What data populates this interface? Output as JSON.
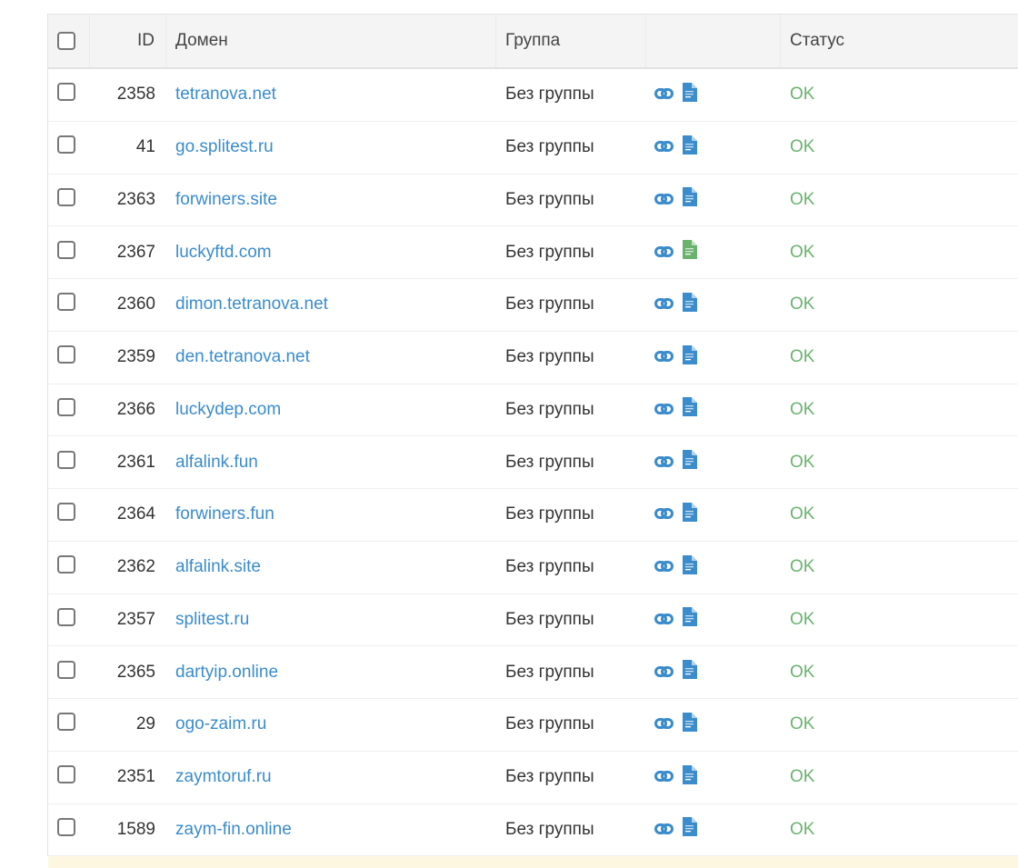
{
  "header": {
    "id": "ID",
    "domain": "Домен",
    "group": "Группа",
    "actions": "",
    "status": "Статус"
  },
  "colors": {
    "link": "#3a8ccc",
    "ok": "#6ab36e",
    "doc_blue": "#3a8ccc",
    "doc_green": "#6ab36e"
  },
  "rows": [
    {
      "id": "2358",
      "domain": "tetranova.net",
      "group": "Без группы",
      "doc": "blue",
      "status": "OK"
    },
    {
      "id": "41",
      "domain": "go.splitest.ru",
      "group": "Без группы",
      "doc": "blue",
      "status": "OK"
    },
    {
      "id": "2363",
      "domain": "forwiners.site",
      "group": "Без группы",
      "doc": "blue",
      "status": "OK"
    },
    {
      "id": "2367",
      "domain": "luckyftd.com",
      "group": "Без группы",
      "doc": "green",
      "status": "OK"
    },
    {
      "id": "2360",
      "domain": "dimon.tetranova.net",
      "group": "Без группы",
      "doc": "blue",
      "status": "OK"
    },
    {
      "id": "2359",
      "domain": "den.tetranova.net",
      "group": "Без группы",
      "doc": "blue",
      "status": "OK"
    },
    {
      "id": "2366",
      "domain": "luckydep.com",
      "group": "Без группы",
      "doc": "blue",
      "status": "OK"
    },
    {
      "id": "2361",
      "domain": "alfalink.fun",
      "group": "Без группы",
      "doc": "blue",
      "status": "OK"
    },
    {
      "id": "2364",
      "domain": "forwiners.fun",
      "group": "Без группы",
      "doc": "blue",
      "status": "OK"
    },
    {
      "id": "2362",
      "domain": "alfalink.site",
      "group": "Без группы",
      "doc": "blue",
      "status": "OK"
    },
    {
      "id": "2357",
      "domain": "splitest.ru",
      "group": "Без группы",
      "doc": "blue",
      "status": "OK"
    },
    {
      "id": "2365",
      "domain": "dartyip.online",
      "group": "Без группы",
      "doc": "blue",
      "status": "OK"
    },
    {
      "id": "29",
      "domain": "ogo-zaim.ru",
      "group": "Без группы",
      "doc": "blue",
      "status": "OK"
    },
    {
      "id": "2351",
      "domain": "zaymtoruf.ru",
      "group": "Без группы",
      "doc": "blue",
      "status": "OK"
    },
    {
      "id": "1589",
      "domain": "zaym-fin.online",
      "group": "Без группы",
      "doc": "blue",
      "status": "OK"
    }
  ]
}
